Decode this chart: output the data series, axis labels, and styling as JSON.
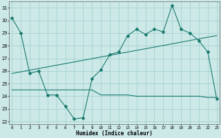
{
  "xlabel": "Humidex (Indice chaleur)",
  "background_color": "#cce9e8",
  "grid_color": "#a8d4d2",
  "line_color": "#1a7a6e",
  "x": [
    0,
    1,
    2,
    3,
    4,
    5,
    6,
    7,
    8,
    9,
    10,
    11,
    12,
    13,
    14,
    15,
    16,
    17,
    18,
    19,
    20,
    21,
    22,
    23
  ],
  "series1": [
    30.2,
    29.0,
    25.8,
    26.0,
    24.1,
    24.1,
    23.2,
    22.2,
    22.3,
    25.4,
    26.1,
    27.3,
    27.5,
    28.8,
    29.3,
    28.9,
    29.3,
    29.1,
    31.2,
    29.3,
    29.0,
    28.4,
    27.5,
    23.8
  ],
  "series2": [
    24.5,
    24.5,
    24.5,
    24.5,
    24.5,
    24.5,
    24.5,
    24.5,
    24.5,
    24.5,
    24.1,
    24.1,
    24.1,
    24.1,
    24.0,
    24.0,
    24.0,
    24.0,
    24.0,
    24.0,
    24.0,
    24.0,
    23.9,
    23.9
  ],
  "series3_x": [
    0,
    23
  ],
  "series3_y": [
    25.8,
    28.8
  ],
  "ylim": [
    21.8,
    31.5
  ],
  "xlim": [
    -0.3,
    23.3
  ],
  "yticks": [
    22,
    23,
    24,
    25,
    26,
    27,
    28,
    29,
    30,
    31
  ],
  "xticks": [
    0,
    1,
    2,
    3,
    4,
    5,
    6,
    7,
    8,
    9,
    10,
    11,
    12,
    13,
    14,
    15,
    16,
    17,
    18,
    19,
    20,
    21,
    22,
    23
  ],
  "figwidth": 3.2,
  "figheight": 2.0,
  "dpi": 100
}
